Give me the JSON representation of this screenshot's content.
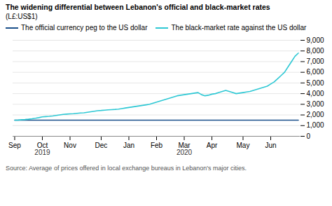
{
  "chart_data": {
    "type": "line",
    "title": "The widening differential between Lebanon's official and black-market rates",
    "subtitle": "(L£:US$1)",
    "source": "Source: Average of prices offered in local exchange bureaus in Lebanon's major cities.",
    "categories": [
      "Sep",
      null,
      null,
      null,
      null,
      null,
      null,
      null,
      "Oct",
      null,
      null,
      null,
      null,
      null,
      null,
      null,
      "Nov",
      null,
      null,
      null,
      null,
      null,
      null,
      null,
      null,
      "Dec",
      null,
      null,
      null,
      null,
      null,
      null,
      null,
      "Jan",
      null,
      null,
      null,
      null,
      null,
      null,
      null,
      "Feb",
      null,
      null,
      null,
      null,
      null,
      null,
      null,
      "Mar",
      null,
      null,
      null,
      null,
      null,
      null,
      null,
      "Apr",
      null,
      null,
      null,
      null,
      null,
      null,
      null,
      null,
      "May",
      null,
      null,
      null,
      null,
      null,
      null,
      null,
      "Jun",
      null,
      null,
      null,
      null,
      null,
      null,
      null,
      null
    ],
    "series": [
      {
        "name": "The official currency peg to the US dollar",
        "color": "#1a4f8a",
        "values": [
          1507,
          1507,
          1507,
          1507,
          1507,
          1507,
          1507,
          1507,
          1507,
          1507,
          1507,
          1507,
          1507,
          1507,
          1507,
          1507,
          1507,
          1507,
          1507,
          1507,
          1507,
          1507,
          1507,
          1507,
          1507,
          1507,
          1507,
          1507,
          1507,
          1507,
          1507,
          1507,
          1507,
          1507,
          1507,
          1507,
          1507,
          1507,
          1507,
          1507,
          1507,
          1507,
          1507,
          1507,
          1507,
          1507,
          1507,
          1507,
          1507,
          1507,
          1507,
          1507,
          1507,
          1507,
          1507,
          1507,
          1507,
          1507,
          1507,
          1507,
          1507,
          1507,
          1507,
          1507,
          1507,
          1507,
          1507,
          1507,
          1507,
          1507,
          1507,
          1507,
          1507,
          1507,
          1507,
          1507,
          1507,
          1507,
          1507,
          1507,
          1507,
          1507,
          1507
        ]
      },
      {
        "name": "The black-market rate against the US dollar",
        "color": "#2ec8d4",
        "values": [
          1510,
          1520,
          1550,
          1570,
          1600,
          1640,
          1690,
          1750,
          1820,
          1850,
          1870,
          1900,
          1950,
          2000,
          2050,
          2080,
          2100,
          2120,
          2150,
          2180,
          2200,
          2250,
          2300,
          2350,
          2400,
          2420,
          2450,
          2480,
          2500,
          2520,
          2550,
          2600,
          2650,
          2700,
          2750,
          2800,
          2850,
          2900,
          2950,
          3000,
          3100,
          3200,
          3300,
          3400,
          3500,
          3600,
          3700,
          3800,
          3850,
          3900,
          3950,
          4000,
          4050,
          4100,
          3900,
          3800,
          3850,
          3950,
          4000,
          4100,
          4200,
          4300,
          4200,
          4100,
          4000,
          4050,
          4100,
          4150,
          4200,
          4300,
          4400,
          4500,
          4600,
          4700,
          4900,
          5100,
          5400,
          5700,
          6000,
          6500,
          7000,
          7500,
          7800
        ]
      }
    ],
    "annotations": [
      {
        "text": "2019",
        "at": "Oct"
      },
      {
        "text": "2020",
        "at": "Mar"
      }
    ],
    "ylim": [
      0,
      9000
    ],
    "yticks": [
      0,
      {
        "value": 1000,
        "label": "1,000"
      },
      {
        "value": 2000,
        "label": "2,000"
      },
      {
        "value": 3000,
        "label": "3,000"
      },
      {
        "value": 4000,
        "label": "4,000"
      },
      {
        "value": 5000,
        "label": "5,000"
      },
      {
        "value": 6000,
        "label": "6,000"
      },
      {
        "value": 7000,
        "label": "7,000"
      },
      {
        "value": 8000,
        "label": "8,000"
      },
      {
        "value": 9000,
        "label": "9,000"
      }
    ],
    "grid": true,
    "legend": "upper left"
  }
}
